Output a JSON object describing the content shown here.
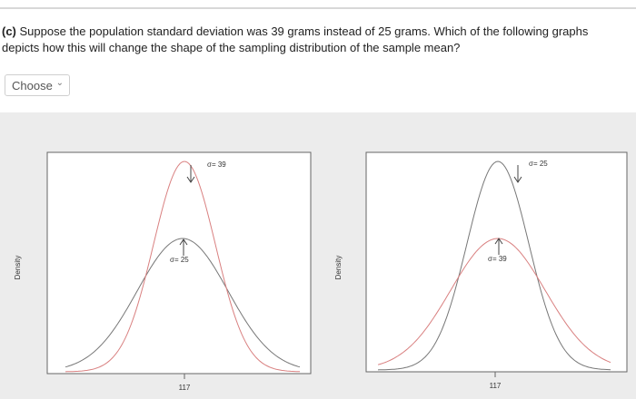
{
  "question": {
    "label": "(c)",
    "text": "Suppose the population standard deviation was 39 grams instead of 25 grams. Which of the following graphs depicts how this will change the shape of the sampling distribution of the sample mean?"
  },
  "dropdown": {
    "placeholder": "Choose"
  },
  "graphs": [
    {
      "y_label": "Density",
      "x_tick": "117",
      "top_annotation": "σ= 39",
      "mid_annotation": "σ= 25"
    },
    {
      "y_label": "Density",
      "x_tick": "117",
      "top_annotation": "σ= 25",
      "mid_annotation": "σ= 39"
    }
  ]
}
